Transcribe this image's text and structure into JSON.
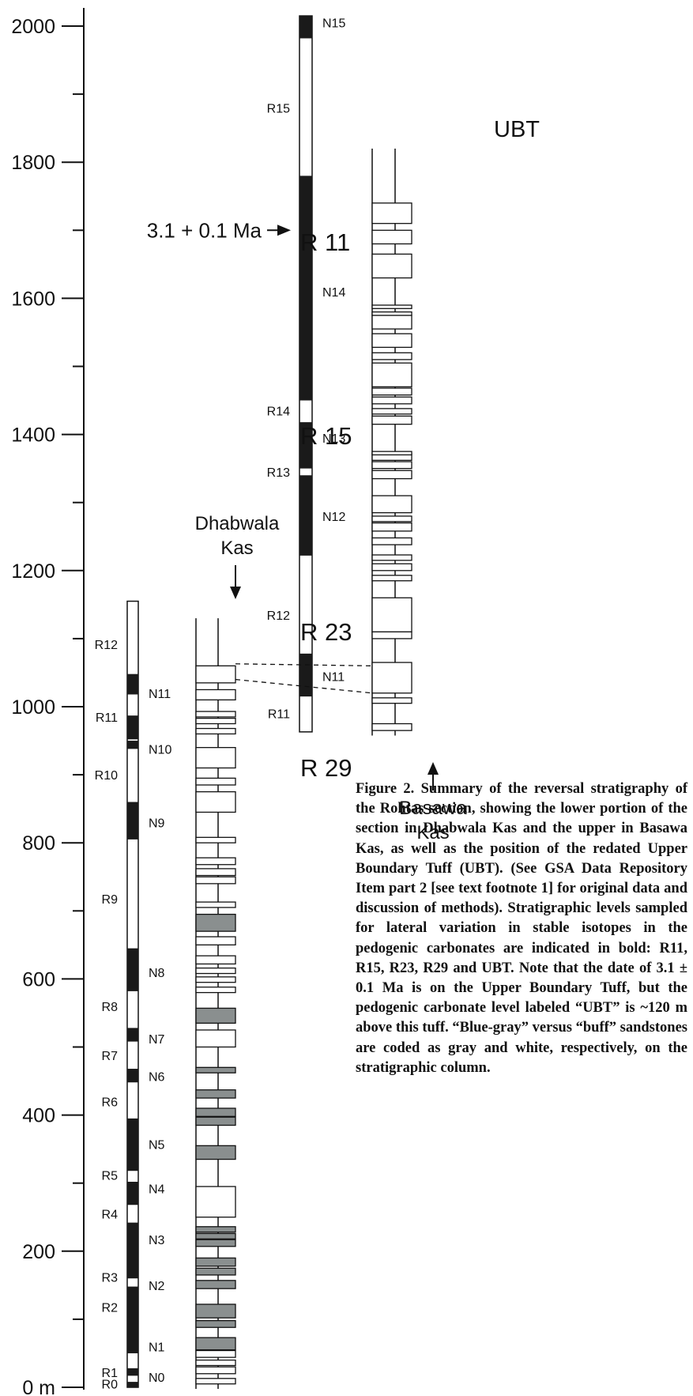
{
  "axis": {
    "ticks": [
      {
        "value": 2000,
        "label": "2000"
      },
      {
        "value": 1800,
        "label": "1800"
      },
      {
        "value": 1600,
        "label": "1600"
      },
      {
        "value": 1400,
        "label": "1400"
      },
      {
        "value": 1200,
        "label": "1200"
      },
      {
        "value": 1000,
        "label": "1000"
      },
      {
        "value": 800,
        "label": "800"
      },
      {
        "value": 600,
        "label": "600"
      },
      {
        "value": 400,
        "label": "400"
      },
      {
        "value": 200,
        "label": "200"
      },
      {
        "value": 0,
        "label": "0 m"
      }
    ],
    "minor_ticks": [
      100,
      300,
      500,
      700,
      900,
      1100,
      1300,
      1500,
      1700,
      1900
    ]
  },
  "lower_column": {
    "range": [
      0,
      1155
    ],
    "normal": [
      [
        0,
        8
      ],
      [
        17,
        28
      ],
      [
        50,
        148
      ],
      [
        160,
        242
      ],
      [
        268,
        302
      ],
      [
        318,
        395
      ],
      [
        448,
        468
      ],
      [
        508,
        528
      ],
      [
        582,
        645
      ],
      [
        805,
        860
      ],
      [
        938,
        950
      ],
      [
        952,
        987
      ],
      [
        1018,
        1048
      ]
    ],
    "labels": [
      {
        "text": "N0",
        "at": 15,
        "side": "right"
      },
      {
        "text": "N1",
        "at": 60,
        "side": "right"
      },
      {
        "text": "N2",
        "at": 150,
        "side": "right"
      },
      {
        "text": "N3",
        "at": 217,
        "side": "right"
      },
      {
        "text": "N4",
        "at": 292,
        "side": "right"
      },
      {
        "text": "N5",
        "at": 357,
        "side": "right"
      },
      {
        "text": "N6",
        "at": 457,
        "side": "right"
      },
      {
        "text": "N7",
        "at": 512,
        "side": "right"
      },
      {
        "text": "N8",
        "at": 610,
        "side": "right"
      },
      {
        "text": "N9",
        "at": 830,
        "side": "right"
      },
      {
        "text": "N10",
        "at": 938,
        "side": "right"
      },
      {
        "text": "N11",
        "at": 1020,
        "side": "right"
      },
      {
        "text": "R0",
        "at": 5,
        "side": "left"
      },
      {
        "text": "R1",
        "at": 22,
        "side": "left"
      },
      {
        "text": "R3",
        "at": 162,
        "side": "left"
      },
      {
        "text": "R2",
        "at": 118,
        "side": "left"
      },
      {
        "text": "R4",
        "at": 255,
        "side": "left"
      },
      {
        "text": "R5",
        "at": 312,
        "side": "left"
      },
      {
        "text": "R6",
        "at": 420,
        "side": "left"
      },
      {
        "text": "R7",
        "at": 488,
        "side": "left"
      },
      {
        "text": "R8",
        "at": 560,
        "side": "left"
      },
      {
        "text": "R9",
        "at": 718,
        "side": "left"
      },
      {
        "text": "R10",
        "at": 900,
        "side": "left"
      },
      {
        "text": "R11",
        "at": 985,
        "side": "left"
      },
      {
        "text": "R12",
        "at": 1092,
        "side": "left"
      }
    ]
  },
  "upper_column": {
    "range": [
      963,
      2015
    ],
    "normal": [
      [
        1015,
        1078
      ],
      [
        1222,
        1340
      ],
      [
        1350,
        1418
      ],
      [
        1450,
        1780
      ],
      [
        1982,
        2015
      ]
    ],
    "labels": [
      {
        "text": "N11",
        "at": 1045,
        "side": "right"
      },
      {
        "text": "N12",
        "at": 1280,
        "side": "right"
      },
      {
        "text": "N13",
        "at": 1395,
        "side": "right"
      },
      {
        "text": "N14",
        "at": 1610,
        "side": "right"
      },
      {
        "text": "N15",
        "at": 2005,
        "side": "right"
      },
      {
        "text": "R11",
        "at": 990,
        "side": "left"
      },
      {
        "text": "R12",
        "at": 1135,
        "side": "left"
      },
      {
        "text": "R13",
        "at": 1345,
        "side": "left"
      },
      {
        "text": "R14",
        "at": 1435,
        "side": "left"
      },
      {
        "text": "R15",
        "at": 1880,
        "side": "left"
      }
    ]
  },
  "dhabwala": {
    "name_line1": "Dhabwala",
    "name_line2": "Kas",
    "range": [
      0,
      1130
    ],
    "beds": [
      [
        5,
        8,
        "w"
      ],
      [
        20,
        10,
        "w"
      ],
      [
        32,
        8,
        "w"
      ],
      [
        44,
        10,
        "w"
      ],
      [
        55,
        18,
        "g"
      ],
      [
        88,
        10,
        "g"
      ],
      [
        102,
        20,
        "g"
      ],
      [
        145,
        12,
        "g"
      ],
      [
        165,
        10,
        "g"
      ],
      [
        178,
        12,
        "g"
      ],
      [
        207,
        10,
        "g"
      ],
      [
        218,
        8,
        "g"
      ],
      [
        228,
        8,
        "g"
      ],
      [
        250,
        45,
        "w"
      ],
      [
        335,
        20,
        "g"
      ],
      [
        385,
        12,
        "g"
      ],
      [
        398,
        12,
        "g"
      ],
      [
        425,
        12,
        "g"
      ],
      [
        462,
        8,
        "g"
      ],
      [
        500,
        25,
        "w"
      ],
      [
        535,
        22,
        "g"
      ],
      [
        580,
        8,
        "w"
      ],
      [
        595,
        8,
        "w"
      ],
      [
        608,
        8,
        "w"
      ],
      [
        622,
        12,
        "w"
      ],
      [
        650,
        12,
        "w"
      ],
      [
        670,
        25,
        "g"
      ],
      [
        705,
        8,
        "w"
      ],
      [
        740,
        10,
        "w"
      ],
      [
        752,
        10,
        "w"
      ],
      [
        768,
        10,
        "w"
      ],
      [
        800,
        8,
        "w"
      ],
      [
        845,
        30,
        "w"
      ],
      [
        885,
        10,
        "w"
      ],
      [
        910,
        30,
        "w"
      ],
      [
        960,
        8,
        "w"
      ],
      [
        975,
        8,
        "w"
      ],
      [
        985,
        8,
        "w"
      ],
      [
        1010,
        15,
        "w"
      ],
      [
        1035,
        25,
        "w"
      ]
    ]
  },
  "basawa": {
    "name_line1": "Basawa",
    "name_line2": "Kas",
    "range": [
      960,
      1820
    ],
    "beds": [
      [
        965,
        10,
        "w"
      ],
      [
        1005,
        8,
        "w"
      ],
      [
        1020,
        45,
        "w"
      ],
      [
        1100,
        10,
        "w"
      ],
      [
        1110,
        50,
        "w"
      ],
      [
        1185,
        8,
        "w"
      ],
      [
        1200,
        10,
        "w"
      ],
      [
        1215,
        8,
        "w"
      ],
      [
        1238,
        10,
        "w"
      ],
      [
        1258,
        12,
        "w"
      ],
      [
        1272,
        8,
        "w"
      ],
      [
        1285,
        25,
        "w"
      ],
      [
        1335,
        12,
        "w"
      ],
      [
        1350,
        10,
        "w"
      ],
      [
        1362,
        10,
        "w"
      ],
      [
        1370,
        5,
        "w"
      ],
      [
        1415,
        12,
        "w"
      ],
      [
        1430,
        8,
        "w"
      ],
      [
        1445,
        10,
        "w"
      ],
      [
        1458,
        10,
        "w"
      ],
      [
        1470,
        35,
        "w"
      ],
      [
        1510,
        10,
        "w"
      ],
      [
        1528,
        20,
        "w"
      ],
      [
        1555,
        20,
        "w"
      ],
      [
        1575,
        5,
        "w"
      ],
      [
        1585,
        5,
        "w"
      ],
      [
        1630,
        35,
        "w"
      ],
      [
        1680,
        20,
        "w"
      ],
      [
        1710,
        30,
        "w"
      ]
    ]
  },
  "annotations": {
    "date": "3.1 + 0.1 Ma",
    "date_level": 1700,
    "ubt": "UBT",
    "r29": "R 29",
    "r23": "R 23",
    "r15": "R 15",
    "r11": "R 11"
  },
  "correlation_lines": [
    [
      1063,
      1060
    ],
    [
      1040,
      1020
    ]
  ],
  "caption": "Figure 2. Summary of the reversal stratigraphy of the Rohtas section, showing the lower portion of the section in Dhabwala Kas and the upper in Basawa Kas, as well as the position of the redated Upper Boundary Tuff (UBT). (See GSA Data Repository Item part 2 [see text footnote 1] for original data and discussion of methods). Stratigraphic levels sampled for lateral variation in stable isotopes in the pedogenic carbonates are indicated in bold: R11, R15, R23, R29 and UBT. Note that the date of 3.1 ± 0.1 Ma is on the Upper Boundary Tuff, but the pedogenic carbonate level labeled “UBT” is ~120 m above this tuff. “Blue-gray” versus “buff” sandstones are coded as gray and white, respectively, on the stratigraphic column.",
  "colors": {
    "normal": "#1a1a1a",
    "reversed": "#ffffff",
    "bluegray": "#8a8f8f",
    "buff": "#ffffff",
    "line": "#111111"
  }
}
